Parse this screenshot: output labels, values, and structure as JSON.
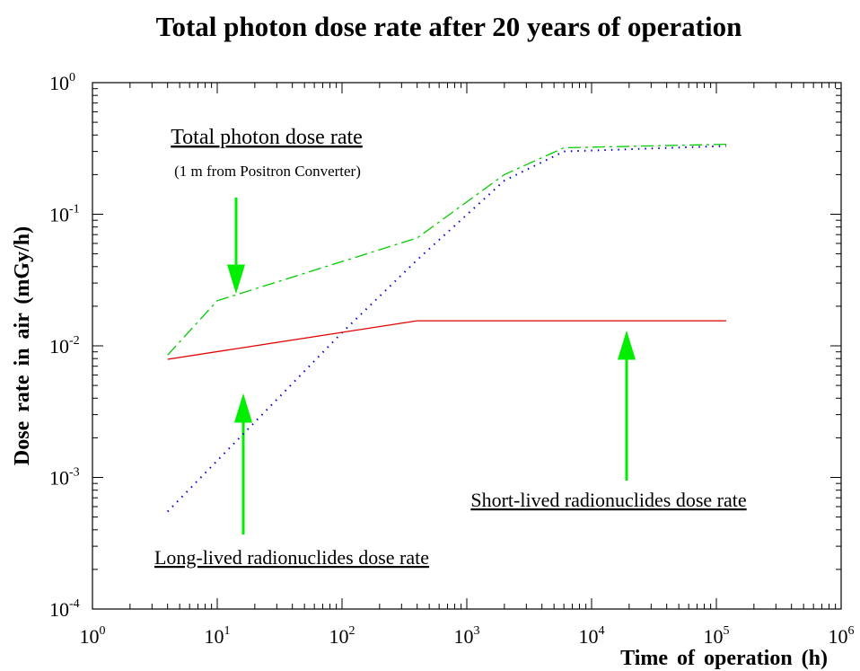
{
  "chart_data": {
    "type": "line",
    "title": "Total photon dose rate after 20 years of operation",
    "x_label": "Time of operation (h)",
    "y_label": "Dose rate in air (mGy/h)",
    "log_x": true,
    "log_y": true,
    "xlim": [
      1,
      1000000
    ],
    "ylim": [
      0.0001,
      1
    ],
    "xticks": [
      {
        "value": 1,
        "label": "10",
        "exponent": "0"
      },
      {
        "value": 10,
        "label": "10",
        "exponent": "1"
      },
      {
        "value": 100,
        "label": "10",
        "exponent": "2"
      },
      {
        "value": 1000,
        "label": "10",
        "exponent": "3"
      },
      {
        "value": 10000,
        "label": "10",
        "exponent": "4"
      },
      {
        "value": 100000,
        "label": "10",
        "exponent": "5"
      },
      {
        "value": 1000000,
        "label": "10",
        "exponent": "6"
      }
    ],
    "yticks": [
      {
        "value": 0.0001,
        "label": "10",
        "exponent": "-4"
      },
      {
        "value": 0.001,
        "label": "10",
        "exponent": "-3"
      },
      {
        "value": 0.01,
        "label": "10",
        "exponent": "-2"
      },
      {
        "value": 0.1,
        "label": "10",
        "exponent": "-1"
      },
      {
        "value": 1,
        "label": "10",
        "exponent": "0"
      }
    ],
    "series": [
      {
        "color": "#00cc00",
        "style": "dashdot",
        "x": [
          4,
          10,
          400,
          2000,
          6000,
          120000
        ],
        "values": [
          0.0085,
          0.022,
          0.066,
          0.2,
          0.32,
          0.34
        ]
      },
      {
        "color": "#0000cc",
        "style": "dotted",
        "x": [
          4,
          100,
          400,
          2000,
          6000,
          120000
        ],
        "values": [
          0.00055,
          0.0126,
          0.045,
          0.18,
          0.3,
          0.33
        ]
      },
      {
        "color": "#e00000",
        "style": "solid",
        "x": [
          4,
          400,
          120000
        ],
        "values": [
          0.0079,
          0.0155,
          0.0155
        ]
      }
    ],
    "annotations": [
      {
        "text": "Total photon dose rate",
        "underline": true
      },
      {
        "text": "(1 m from Positron Converter)",
        "underline": false
      },
      {
        "text": "Long-lived radionuclides dose rate",
        "underline": true
      },
      {
        "text": "Short-lived radionuclides dose rate",
        "underline": true
      }
    ]
  }
}
